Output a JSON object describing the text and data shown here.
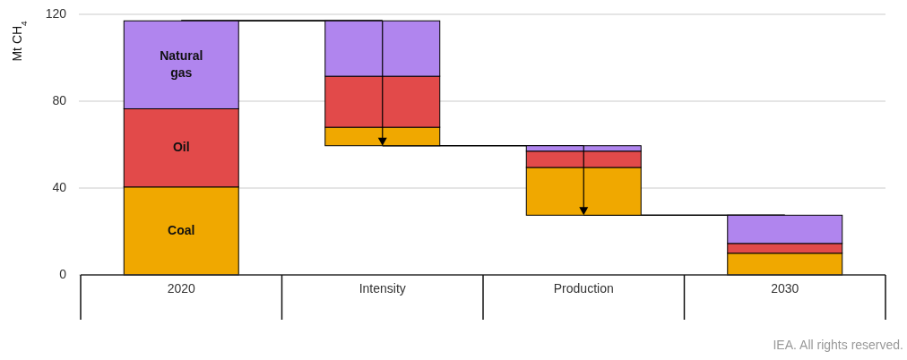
{
  "chart_data": {
    "type": "bar",
    "ylabel": "Mt CH$_{4}$",
    "categories": [
      "2020",
      "Intensity",
      "Production",
      "2030"
    ],
    "series": [
      {
        "name": "Coal",
        "color": "#f0a800",
        "base": [
          0,
          59.5,
          27.5,
          0
        ],
        "values": [
          40.5,
          8.5,
          22,
          10
        ]
      },
      {
        "name": "Oil",
        "color": "#e24a4a",
        "base": [
          40.5,
          68,
          49.5,
          10
        ],
        "values": [
          36,
          23.5,
          7.5,
          4.5
        ]
      },
      {
        "name": "Natural gas",
        "color": "#b085ee",
        "base": [
          76.5,
          91.5,
          57,
          14.5
        ],
        "values": [
          40.5,
          25.5,
          2.5,
          13
        ]
      }
    ],
    "ylim": [
      0,
      120
    ],
    "yticks": [
      0,
      40,
      80,
      120
    ],
    "grid": "y",
    "legend": false,
    "annotations": [
      "IEA. All rights reserved."
    ]
  }
}
